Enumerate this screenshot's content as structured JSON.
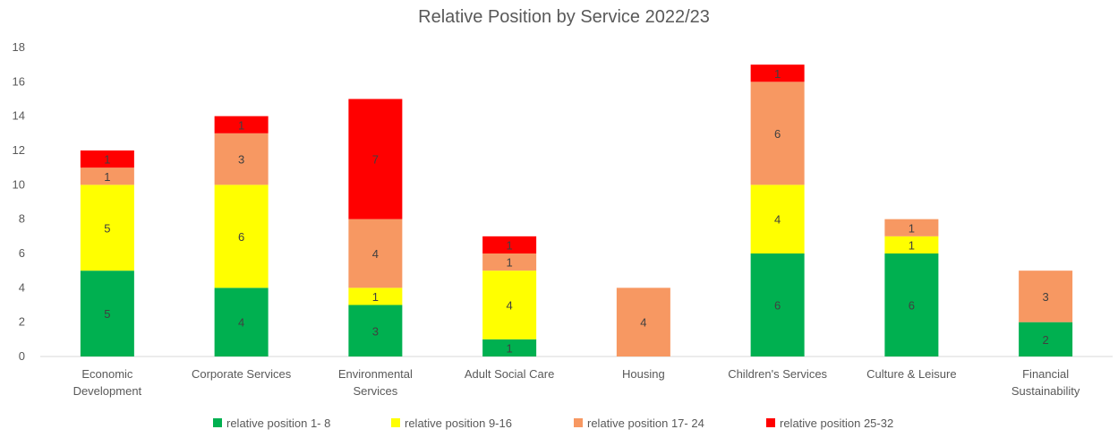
{
  "chart_data": {
    "type": "bar",
    "stacked": true,
    "title": "Relative Position by Service 2022/23",
    "xlabel": "",
    "ylabel": "",
    "ylim": [
      0,
      18
    ],
    "yticks": [
      "0",
      "2",
      "4",
      "6",
      "8",
      "10",
      "12",
      "14",
      "16",
      "18"
    ],
    "grid": false,
    "legend_position": "bottom",
    "categories": [
      [
        "Economic",
        "Development"
      ],
      [
        "Corporate Services"
      ],
      [
        "Environmental",
        "Services"
      ],
      [
        "Adult Social Care"
      ],
      [
        "Housing"
      ],
      [
        "Children's Services"
      ],
      [
        "Culture & Leisure"
      ],
      [
        "Financial",
        "Sustainability"
      ]
    ],
    "series": [
      {
        "name": "relative position 1- 8",
        "color": "#00b050",
        "values": [
          5,
          4,
          3,
          1,
          0,
          6,
          6,
          2
        ]
      },
      {
        "name": "relative position 9-16",
        "color": "#ffff00",
        "values": [
          5,
          6,
          1,
          4,
          0,
          4,
          1,
          0
        ]
      },
      {
        "name": "relative position 17- 24",
        "color": "#f79862",
        "values": [
          1,
          3,
          4,
          1,
          4,
          6,
          1,
          3
        ]
      },
      {
        "name": "relative position 25-32",
        "color": "#ff0000",
        "values": [
          1,
          1,
          7,
          1,
          0,
          1,
          0,
          0
        ]
      }
    ]
  }
}
